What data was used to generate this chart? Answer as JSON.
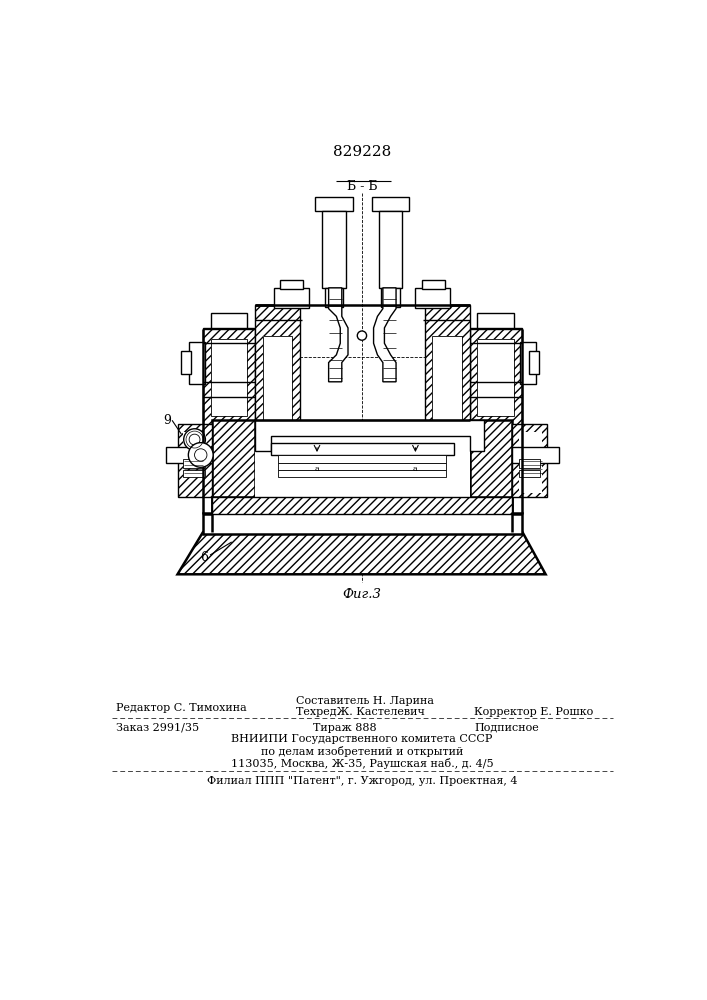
{
  "patent_number": "829228",
  "figure_label": "Фиг.3",
  "section_label": "Б - Б",
  "label_9": "9",
  "label_6": "6",
  "editor_line": "Редактор С. Тимохина",
  "composer_line": "Составитель Н. Ларина",
  "techred_line": "ТехредЖ. Кастелевич",
  "corrector_line": "Корректор Е. Рошко",
  "order_line": "Заказ 2991/35",
  "tirazh_line": "Тираж 888",
  "podpisnoe_line": "Подписное",
  "vnipi_line": "ВНИИПИ Государственного комитета СССР",
  "deals_line": "по делам изобретений и открытий",
  "address_line": "113035, Москва, Ж-35, Раушская наб., д. 4/5",
  "filial_line": "Филиал ППП \"Патент\", г. Ужгород, ул. Проектная, 4",
  "bg_color": "#ffffff",
  "line_color": "#000000"
}
